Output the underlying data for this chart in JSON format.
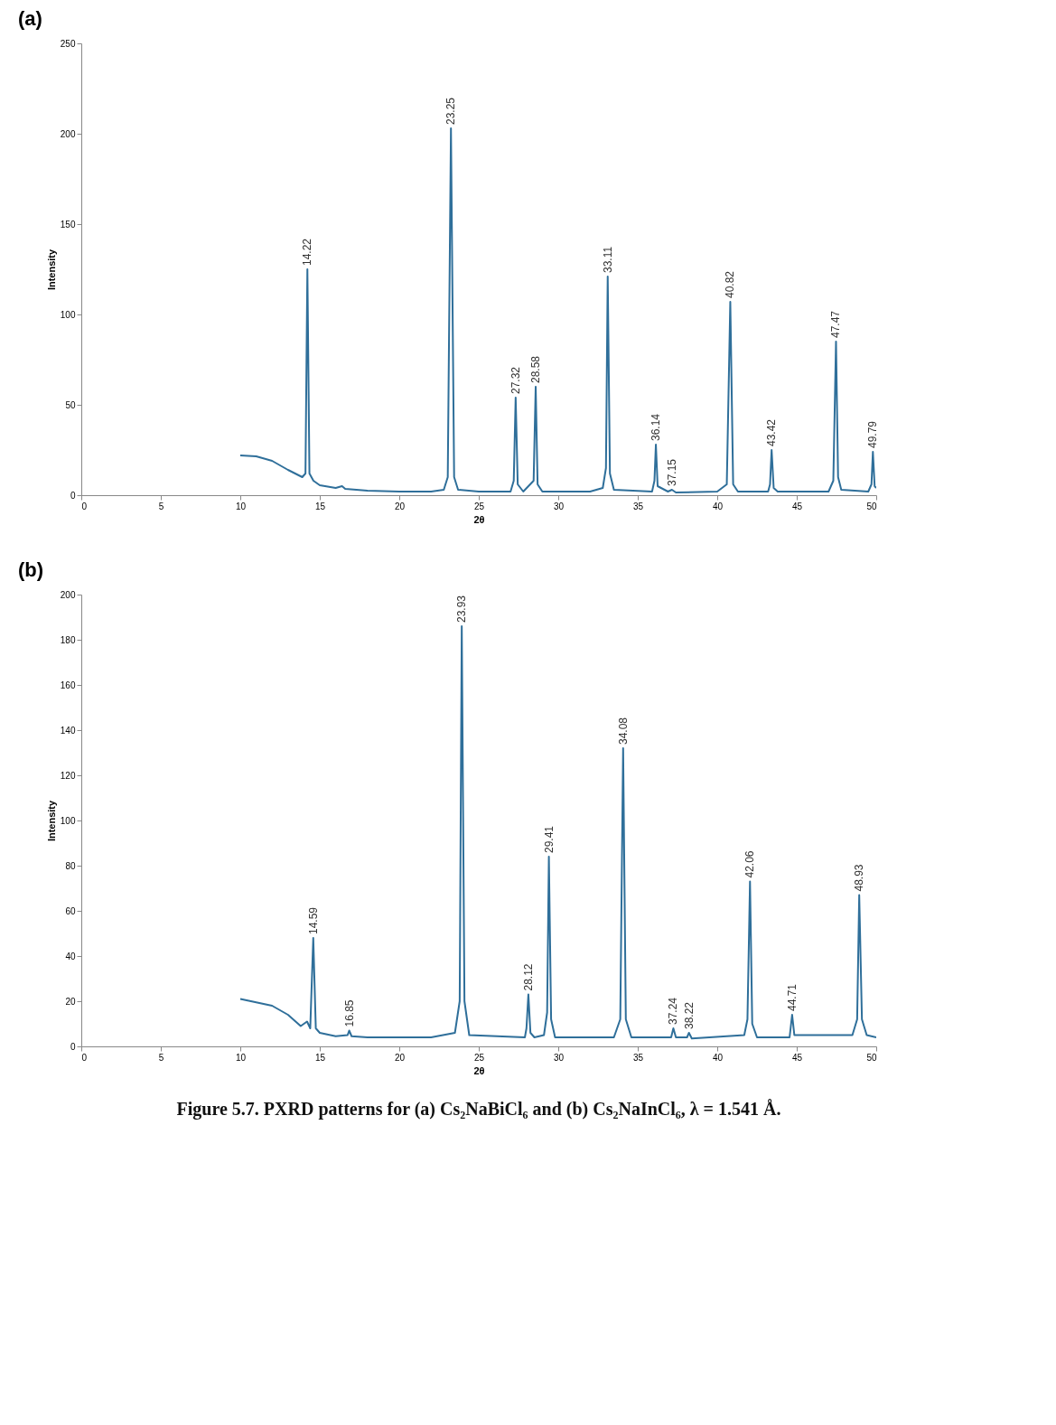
{
  "chart_data": [
    {
      "type": "line",
      "title": "(a)",
      "xlabel": "2θ",
      "ylabel": "Intensity",
      "xlim": [
        0,
        50
      ],
      "xticks": [
        0,
        5,
        10,
        15,
        20,
        25,
        30,
        35,
        40,
        45,
        50
      ],
      "ylim": [
        0,
        250
      ],
      "yticks": [
        0,
        50,
        100,
        150,
        200,
        250
      ],
      "grid": false,
      "marker": "none",
      "line_style": "solid",
      "series": [
        {
          "color": "#2f6f9a",
          "x": [
            10,
            11,
            12,
            13,
            13.9,
            14.1,
            14.22,
            14.35,
            14.6,
            15,
            16,
            16.4,
            16.6,
            18,
            20,
            22,
            22.8,
            23.05,
            23.25,
            23.45,
            23.7,
            25,
            27,
            27.2,
            27.32,
            27.45,
            27.8,
            28.45,
            28.58,
            28.7,
            29,
            32,
            32.8,
            33.0,
            33.11,
            33.25,
            33.5,
            35.9,
            36.05,
            36.14,
            36.25,
            36.9,
            37.15,
            37.4,
            40,
            40.6,
            40.82,
            41.0,
            41.3,
            43.2,
            43.32,
            43.42,
            43.55,
            43.8,
            47,
            47.3,
            47.47,
            47.6,
            47.8,
            49.5,
            49.7,
            49.79,
            49.9,
            50
          ],
          "values": [
            22,
            21.5,
            19,
            14,
            10,
            12,
            125,
            12,
            8,
            5.5,
            4,
            5,
            3.5,
            2.5,
            2,
            2,
            3,
            10,
            203,
            10,
            3,
            2,
            2,
            8,
            54,
            6,
            2,
            8,
            60,
            6,
            2,
            2,
            4,
            15,
            121,
            12,
            3,
            2,
            8,
            28,
            5,
            2,
            3,
            1.5,
            2,
            6,
            107,
            6,
            2,
            2,
            6,
            25,
            4,
            2,
            2,
            8,
            85,
            10,
            3,
            2,
            6,
            24,
            5,
            4
          ]
        }
      ],
      "annotations": [
        {
          "text": "14.22",
          "x": 14.22,
          "y": 125
        },
        {
          "text": "23.25",
          "x": 23.25,
          "y": 203
        },
        {
          "text": "27.32",
          "x": 27.32,
          "y": 54
        },
        {
          "text": "28.58",
          "x": 28.58,
          "y": 60
        },
        {
          "text": "33.11",
          "x": 33.11,
          "y": 121
        },
        {
          "text": "36.14",
          "x": 36.14,
          "y": 28
        },
        {
          "text": "37.15",
          "x": 37.15,
          "y": 3
        },
        {
          "text": "40.82",
          "x": 40.82,
          "y": 107
        },
        {
          "text": "43.42",
          "x": 43.42,
          "y": 25
        },
        {
          "text": "47.47",
          "x": 47.47,
          "y": 85
        },
        {
          "text": "49.79",
          "x": 49.79,
          "y": 24
        }
      ]
    },
    {
      "type": "line",
      "title": "(b)",
      "xlabel": "2θ",
      "ylabel": "Intensity",
      "xlim": [
        0,
        50
      ],
      "xticks": [
        0,
        5,
        10,
        15,
        20,
        25,
        30,
        35,
        40,
        45,
        50
      ],
      "ylim": [
        0,
        200
      ],
      "yticks": [
        0,
        20,
        40,
        60,
        80,
        100,
        120,
        140,
        160,
        180,
        200
      ],
      "grid": false,
      "marker": "none",
      "line_style": "solid",
      "series": [
        {
          "color": "#2f6f9a",
          "x": [
            10,
            12,
            13,
            13.8,
            14.2,
            14.4,
            14.59,
            14.75,
            15,
            16,
            16.75,
            16.85,
            17,
            18,
            22,
            23.5,
            23.8,
            23.93,
            24.1,
            24.4,
            27.9,
            28.0,
            28.12,
            28.25,
            28.5,
            29.1,
            29.3,
            29.41,
            29.55,
            29.8,
            33.5,
            33.9,
            34.08,
            34.25,
            34.6,
            37.1,
            37.24,
            37.4,
            38.1,
            38.22,
            38.4,
            41.7,
            41.9,
            42.06,
            42.2,
            42.5,
            44.55,
            44.71,
            44.85,
            48.5,
            48.8,
            48.93,
            49.1,
            49.4,
            50
          ],
          "values": [
            21,
            18,
            14,
            9,
            11,
            8,
            48,
            8,
            6,
            4.5,
            5,
            7,
            4.5,
            4,
            4,
            6,
            20,
            186,
            20,
            5,
            4,
            8,
            23,
            6,
            4,
            5,
            15,
            84,
            12,
            4,
            4,
            12,
            132,
            12,
            4,
            4,
            8,
            4,
            4,
            6,
            3.5,
            5,
            12,
            73,
            10,
            4,
            4,
            14,
            5,
            5,
            12,
            67,
            12,
            5,
            4
          ]
        }
      ],
      "annotations": [
        {
          "text": "14.59",
          "x": 14.59,
          "y": 48
        },
        {
          "text": "16.85",
          "x": 16.85,
          "y": 7
        },
        {
          "text": "23.93",
          "x": 23.93,
          "y": 186
        },
        {
          "text": "28.12",
          "x": 28.12,
          "y": 23
        },
        {
          "text": "29.41",
          "x": 29.41,
          "y": 84
        },
        {
          "text": "34.08",
          "x": 34.08,
          "y": 132
        },
        {
          "text": "37.24",
          "x": 37.24,
          "y": 8
        },
        {
          "text": "38.22",
          "x": 38.22,
          "y": 6
        },
        {
          "text": "42.06",
          "x": 42.06,
          "y": 73
        },
        {
          "text": "44.71",
          "x": 44.71,
          "y": 14
        },
        {
          "text": "48.93",
          "x": 48.93,
          "y": 67
        },
        "Figure 5.7. PXRD patterns for (a) Cs₂NaBiCl₆ and (b) Cs₂NaInCl₆, λ = 1.541 Å."
      ]
    }
  ]
}
